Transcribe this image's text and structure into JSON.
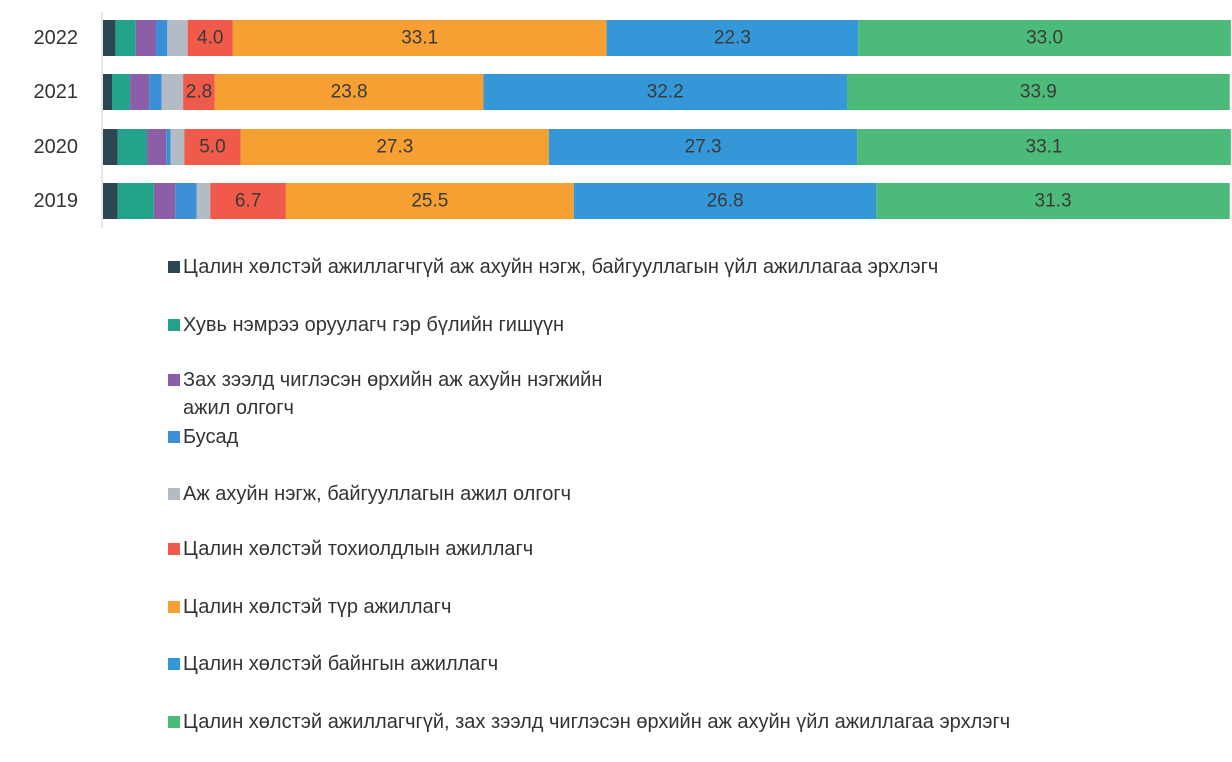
{
  "chart_data": {
    "type": "stacked_barh",
    "categories": [
      "2022",
      "2021",
      "2020",
      "2019"
    ],
    "xlim": [
      0,
      100
    ],
    "series": [
      {
        "name": "Цалин хөлстэй ажиллагчгүй аж ахуйн нэгж, байгууллагын үйл ажиллагаа эрхлэгч",
        "color": "#2d4654",
        "values": [
          1.1,
          0.8,
          1.3,
          1.3
        ]
      },
      {
        "name": "Хувь нэмрээ оруулагч гэр бүлийн гишүүн",
        "color": "#22a38a",
        "values": [
          1.8,
          1.6,
          2.6,
          3.2
        ]
      },
      {
        "name": "Зах зээлд чиглэсэн өрхийн аж ахуйн нэгжийн ажил олгогч",
        "color": "#8b5ea8",
        "values": [
          1.8,
          1.7,
          1.7,
          1.9
        ]
      },
      {
        "name": "Бусад",
        "color": "#3a8fd6",
        "values": [
          1.0,
          1.1,
          0.4,
          1.9
        ]
      },
      {
        "name": "Аж ахуйн нэгж, байгууллагын ажил олгогч",
        "color": "#b3bcc4",
        "values": [
          1.8,
          1.9,
          1.2,
          1.2
        ]
      },
      {
        "name": "Цалин хөлстэй тохиолдлын ажиллагч",
        "color": "#ef5a4a",
        "values": [
          4.0,
          2.8,
          5.0,
          6.7
        ],
        "value_labels": [
          "4.0",
          "2.8",
          "5.0",
          "6.7"
        ]
      },
      {
        "name": "Цалин хөлстэй түр ажиллагч",
        "color": "#f6a033",
        "values": [
          33.1,
          23.8,
          27.3,
          25.5
        ],
        "value_labels": [
          "33.1",
          "23.8",
          "27.3",
          "25.5"
        ]
      },
      {
        "name": "Цалин хөлстэй байнгын ажиллагч",
        "color": "#3498d8",
        "values": [
          22.3,
          32.2,
          27.3,
          26.8
        ],
        "value_labels": [
          "22.3",
          "32.2",
          "27.3",
          "26.8"
        ]
      },
      {
        "name": "Цалин хөлстэй ажиллагчгүй, зах зээлд чиглэсэн өрхийн аж ахуйн үйл ажиллагаа эрхлэгч",
        "color": "#4cbb7a",
        "values": [
          33.0,
          33.9,
          33.1,
          31.3
        ],
        "value_labels": [
          "33.0",
          "33.9",
          "33.1",
          "31.3"
        ]
      }
    ]
  }
}
